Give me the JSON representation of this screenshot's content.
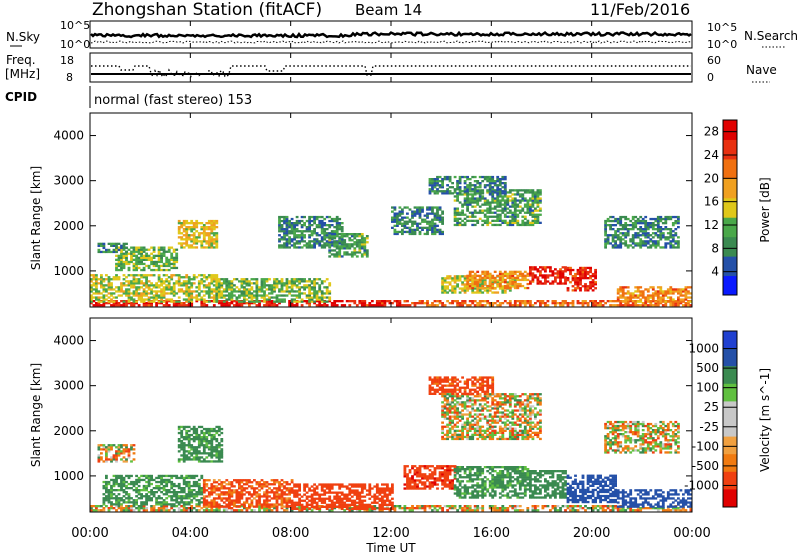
{
  "header": {
    "station_title": "Zhongshan Station (fitACF)",
    "beam_label": "Beam 14",
    "date": "11/Feb/2016"
  },
  "top_panels": {
    "nsky_label": "N.Sky",
    "nsearch_label": "N.Search",
    "noise_ticks_left": [
      "10^5",
      "10^0"
    ],
    "noise_ticks_right": [
      "10^5",
      "10^0"
    ],
    "freq_label_1": "Freq.",
    "freq_label_2": "[MHz]",
    "freq_ticks": [
      "18",
      "8"
    ],
    "nave_label": "Nave",
    "nave_ticks": [
      "60",
      "0"
    ],
    "cpid_label": "CPID",
    "cpid_text": "normal (fast stereo) 153"
  },
  "colors": {
    "power_scale": [
      "#0a1aff",
      "#2450a8",
      "#3a8a50",
      "#4aa84a",
      "#e0c81a",
      "#f0a020",
      "#f07010",
      "#e83010",
      "#e00000"
    ],
    "velocity_scale": [
      "#e00000",
      "#f04010",
      "#f07a10",
      "#f0a040",
      "#c8c8c8",
      "#c8c8c8",
      "#60c040",
      "#3a8a50",
      "#2450a8",
      "#2040d0"
    ]
  },
  "chart_data": [
    {
      "type": "heatmap",
      "panel": "power",
      "xlabel": "",
      "ylabel": "Slant Range [km]",
      "x_ticks": [
        "00:00",
        "04:00",
        "08:00",
        "12:00",
        "16:00",
        "20:00",
        "00:00"
      ],
      "xlim": [
        0,
        24
      ],
      "ylim": [
        200,
        4500
      ],
      "y_ticks": [
        1000,
        2000,
        3000,
        4000
      ],
      "colorbar": {
        "label": "Power [dB]",
        "ticks": [
          4,
          8,
          12,
          16,
          20,
          24,
          28
        ],
        "range": [
          0,
          30
        ]
      },
      "regions": [
        {
          "t": [
            0.0,
            12.5
          ],
          "r": [
            220,
            330
          ],
          "v": 27
        },
        {
          "t": [
            12.5,
            24.0
          ],
          "r": [
            220,
            320
          ],
          "v": 22
        },
        {
          "t": [
            0.0,
            5.0
          ],
          "r": [
            300,
            900
          ],
          "v": 14
        },
        {
          "t": [
            5.0,
            9.5
          ],
          "r": [
            300,
            800
          ],
          "v": 12
        },
        {
          "t": [
            1.0,
            3.5
          ],
          "r": [
            1000,
            1500
          ],
          "v": 12
        },
        {
          "t": [
            0.3,
            1.5
          ],
          "r": [
            1400,
            1600
          ],
          "v": 8
        },
        {
          "t": [
            3.5,
            5.0
          ],
          "r": [
            1500,
            2100
          ],
          "v": 16
        },
        {
          "t": [
            7.5,
            10.0
          ],
          "r": [
            1500,
            2200
          ],
          "v": 8
        },
        {
          "t": [
            9.5,
            11.0
          ],
          "r": [
            1300,
            1800
          ],
          "v": 10
        },
        {
          "t": [
            14.0,
            17.0
          ],
          "r": [
            500,
            900
          ],
          "v": 14
        },
        {
          "t": [
            15.0,
            17.5
          ],
          "r": [
            600,
            1000
          ],
          "v": 20
        },
        {
          "t": [
            17.5,
            19.0
          ],
          "r": [
            700,
            1100
          ],
          "v": 27
        },
        {
          "t": [
            19.0,
            20.2
          ],
          "r": [
            550,
            1050
          ],
          "v": 26
        },
        {
          "t": [
            14.5,
            18.0
          ],
          "r": [
            2000,
            2800
          ],
          "v": 10
        },
        {
          "t": [
            13.5,
            16.5
          ],
          "r": [
            2700,
            3100
          ],
          "v": 8
        },
        {
          "t": [
            12.0,
            14.0
          ],
          "r": [
            1800,
            2400
          ],
          "v": 8
        },
        {
          "t": [
            20.5,
            23.5
          ],
          "r": [
            1500,
            2200
          ],
          "v": 8
        },
        {
          "t": [
            21.0,
            24.0
          ],
          "r": [
            300,
            650
          ],
          "v": 20
        }
      ]
    },
    {
      "type": "heatmap",
      "panel": "velocity",
      "xlabel": "Time UT",
      "ylabel": "Slant Range [km]",
      "x_ticks": [
        "00:00",
        "04:00",
        "08:00",
        "12:00",
        "16:00",
        "20:00",
        "00:00"
      ],
      "xlim": [
        0,
        24
      ],
      "ylim": [
        200,
        4500
      ],
      "y_ticks": [
        1000,
        2000,
        3000,
        4000
      ],
      "colorbar": {
        "label": "Velocity [m s^-1]",
        "ticks": [
          "1000",
          "500",
          "100",
          "25",
          "-25",
          "-100",
          "-500",
          "-1000"
        ]
      },
      "regions": [
        {
          "t": [
            0.0,
            24.0
          ],
          "r": [
            220,
            330
          ],
          "v": 0
        },
        {
          "t": [
            0.5,
            4.5
          ],
          "r": [
            350,
            1000
          ],
          "v": 200
        },
        {
          "t": [
            4.5,
            8.0
          ],
          "r": [
            300,
            900
          ],
          "v": -150
        },
        {
          "t": [
            8.0,
            12.0
          ],
          "r": [
            250,
            800
          ],
          "v": -300
        },
        {
          "t": [
            0.3,
            1.8
          ],
          "r": [
            1300,
            1700
          ],
          "v": 0
        },
        {
          "t": [
            3.5,
            5.2
          ],
          "r": [
            1300,
            2100
          ],
          "v": 200
        },
        {
          "t": [
            12.5,
            14.5
          ],
          "r": [
            700,
            1200
          ],
          "v": -400
        },
        {
          "t": [
            14.5,
            17.5
          ],
          "r": [
            500,
            1200
          ],
          "v": 200
        },
        {
          "t": [
            17.5,
            19.0
          ],
          "r": [
            500,
            1100
          ],
          "v": 300
        },
        {
          "t": [
            19.0,
            21.0
          ],
          "r": [
            400,
            1000
          ],
          "v": 800
        },
        {
          "t": [
            21.0,
            24.0
          ],
          "r": [
            300,
            700
          ],
          "v": 800
        },
        {
          "t": [
            14.0,
            18.0
          ],
          "r": [
            1800,
            2800
          ],
          "v": 0
        },
        {
          "t": [
            13.5,
            16.0
          ],
          "r": [
            2800,
            3200
          ],
          "v": -200
        },
        {
          "t": [
            20.5,
            23.5
          ],
          "r": [
            1500,
            2200
          ],
          "v": 0
        }
      ]
    }
  ]
}
